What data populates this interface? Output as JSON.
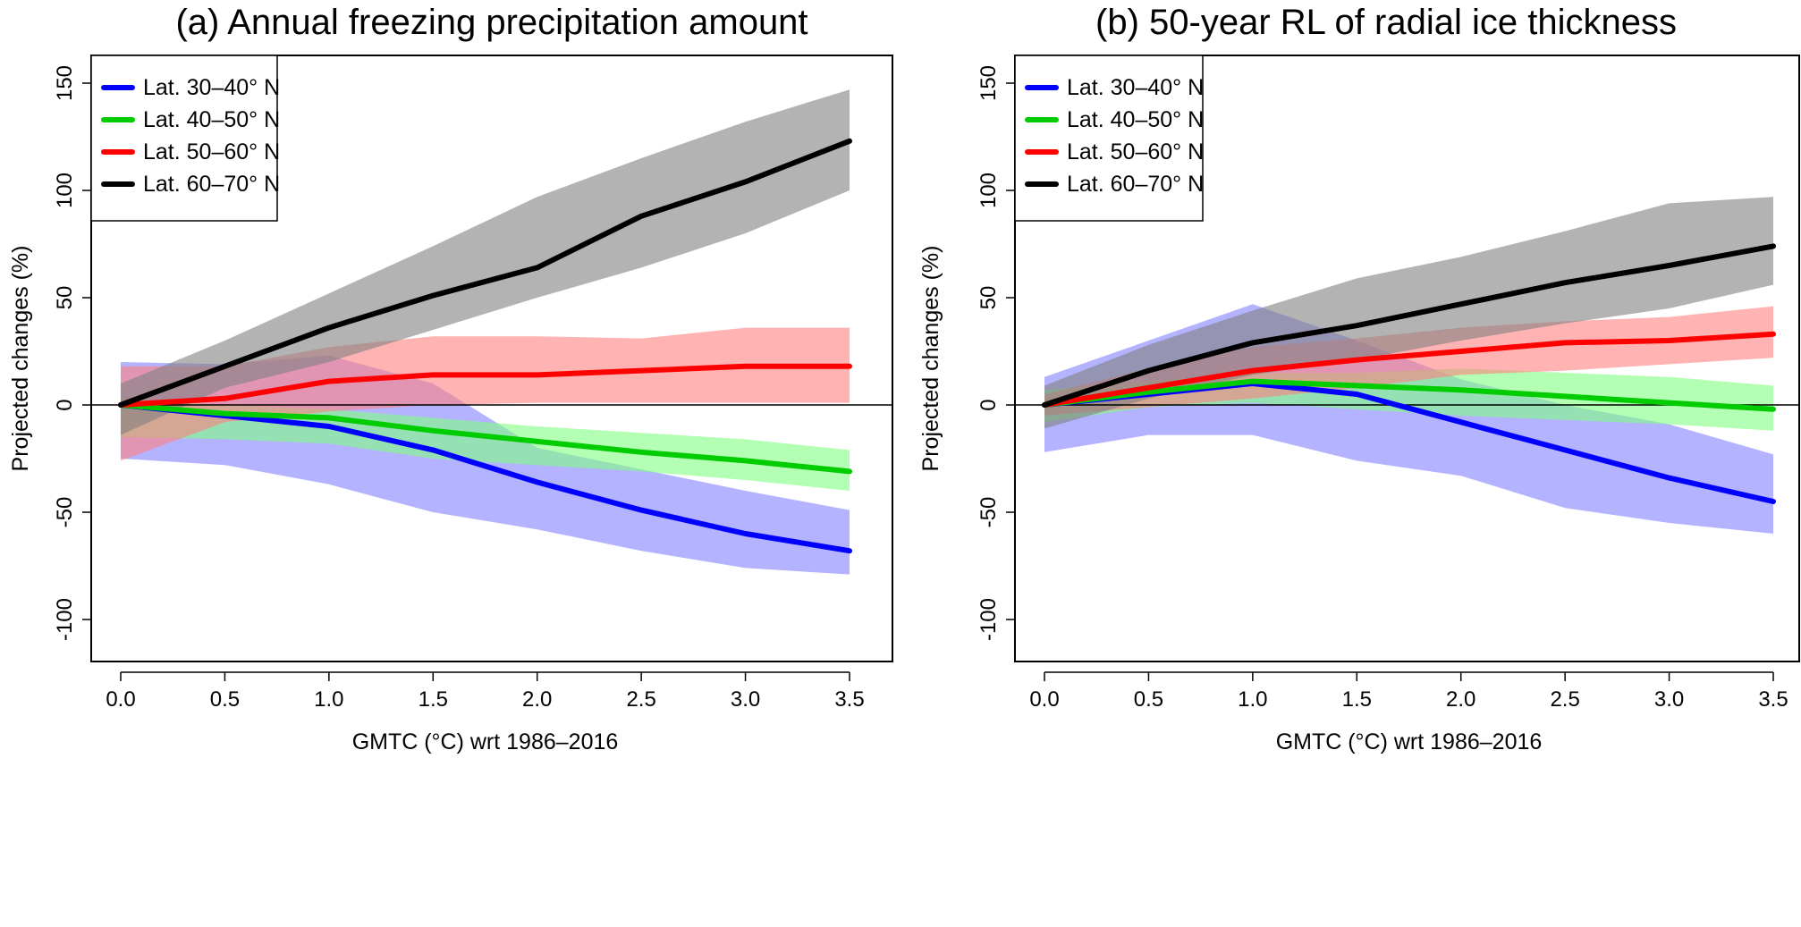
{
  "chart_data": [
    {
      "type": "line",
      "title": "(a) Annual freezing precipitation amount",
      "xlabel": "GMTC (°C) wrt 1986–2016",
      "ylabel": "Projected  changes (%)",
      "xlim": [
        0,
        3.5
      ],
      "ylim": [
        -110,
        160
      ],
      "xticks": [
        0.0,
        0.5,
        1.0,
        1.5,
        2.0,
        2.5,
        3.0,
        3.5
      ],
      "xtick_labels": [
        "0.0",
        "0.5",
        "1.0",
        "1.5",
        "2.0",
        "2.5",
        "3.0",
        "3.5"
      ],
      "yticks": [
        -100,
        -50,
        0,
        50,
        100,
        150
      ],
      "ytick_labels": [
        "-100",
        "-50",
        "0",
        "50",
        "100",
        "150"
      ],
      "reference_line": 0,
      "grid": false,
      "legend_position": "top-left",
      "x": [
        0.0,
        0.5,
        1.0,
        1.5,
        2.0,
        2.5,
        3.0,
        3.5
      ],
      "series": [
        {
          "name": "Lat. 30–40° N",
          "color": "#0000ff",
          "band_color": "#8080ff",
          "values": [
            0,
            -5,
            -10,
            -21,
            -36,
            -49,
            -60,
            -68
          ],
          "lower": [
            -25,
            -28,
            -37,
            -50,
            -58,
            -68,
            -76,
            -79
          ],
          "upper": [
            20,
            19,
            23,
            10,
            -20,
            -30,
            -40,
            -49
          ]
        },
        {
          "name": "Lat. 40–50° N",
          "color": "#00cc00",
          "band_color": "#80ff80",
          "values": [
            0,
            -4,
            -6,
            -12,
            -17,
            -22,
            -26,
            -31
          ],
          "lower": [
            -15,
            -16,
            -18,
            -25,
            -28,
            -31,
            -35,
            -40
          ],
          "upper": [
            3,
            0,
            -2,
            -6,
            -10,
            -13,
            -16,
            -21
          ]
        },
        {
          "name": "Lat. 50–60° N",
          "color": "#ff0000",
          "band_color": "#ff8080",
          "values": [
            0,
            3,
            11,
            14,
            14,
            16,
            18,
            18
          ],
          "lower": [
            -26,
            -8,
            -3,
            0,
            1,
            1,
            1,
            1
          ],
          "upper": [
            18,
            18,
            27,
            32,
            32,
            31,
            36,
            36
          ]
        },
        {
          "name": "Lat. 60–70° N",
          "color": "#000000",
          "band_color": "#808080",
          "values": [
            0,
            18,
            36,
            51,
            64,
            88,
            104,
            123
          ],
          "lower": [
            -14,
            8,
            20,
            35,
            50,
            64,
            80,
            100
          ],
          "upper": [
            10,
            30,
            52,
            74,
            97,
            115,
            132,
            147
          ]
        }
      ]
    },
    {
      "type": "line",
      "title": "(b) 50-year RL of radial ice thickness",
      "xlabel": "GMTC (°C) wrt 1986–2016",
      "ylabel": "Projected  changes (%)",
      "xlim": [
        0,
        3.5
      ],
      "ylim": [
        -110,
        160
      ],
      "xticks": [
        0.0,
        0.5,
        1.0,
        1.5,
        2.0,
        2.5,
        3.0,
        3.5
      ],
      "xtick_labels": [
        "0.0",
        "0.5",
        "1.0",
        "1.5",
        "2.0",
        "2.5",
        "3.0",
        "3.5"
      ],
      "yticks": [
        -100,
        -50,
        0,
        50,
        100,
        150
      ],
      "ytick_labels": [
        "-100",
        "-50",
        "0",
        "50",
        "100",
        "150"
      ],
      "reference_line": 0,
      "grid": false,
      "legend_position": "top-left",
      "x": [
        0.0,
        0.5,
        1.0,
        1.5,
        2.0,
        2.5,
        3.0,
        3.5
      ],
      "series": [
        {
          "name": "Lat. 30–40° N",
          "color": "#0000ff",
          "band_color": "#8080ff",
          "values": [
            0,
            5,
            10,
            5,
            -8,
            -21,
            -34,
            -45
          ],
          "lower": [
            -22,
            -14,
            -14,
            -26,
            -33,
            -48,
            -55,
            -60
          ],
          "upper": [
            13,
            30,
            47,
            30,
            12,
            0,
            -9,
            -23
          ]
        },
        {
          "name": "Lat. 40–50° N",
          "color": "#00cc00",
          "band_color": "#80ff80",
          "values": [
            0,
            6,
            11,
            9,
            7,
            4,
            1,
            -2
          ],
          "lower": [
            -8,
            -1,
            1,
            -2,
            -5,
            -7,
            -9,
            -12
          ],
          "upper": [
            7,
            11,
            15,
            15,
            17,
            15,
            13,
            9
          ]
        },
        {
          "name": "Lat. 50–60° N",
          "color": "#ff0000",
          "band_color": "#ff8080",
          "values": [
            0,
            8,
            16,
            21,
            25,
            29,
            30,
            33
          ],
          "lower": [
            -5,
            -1,
            3,
            8,
            14,
            16,
            19,
            22
          ],
          "upper": [
            5,
            17,
            27,
            31,
            36,
            39,
            41,
            46
          ]
        },
        {
          "name": "Lat. 60–70° N",
          "color": "#000000",
          "band_color": "#808080",
          "values": [
            0,
            16,
            29,
            37,
            47,
            57,
            65,
            74
          ],
          "lower": [
            -11,
            3,
            14,
            21,
            30,
            38,
            45,
            56
          ],
          "upper": [
            9,
            28,
            44,
            59,
            69,
            81,
            94,
            97
          ]
        }
      ]
    }
  ]
}
